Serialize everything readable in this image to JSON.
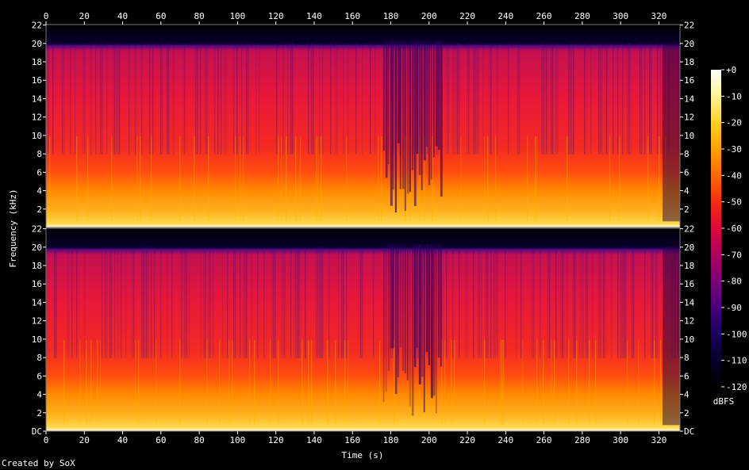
{
  "footer": {
    "created_by": "Created by SoX"
  },
  "chart_data": {
    "type": "heatmap",
    "title": "",
    "xlabel": "Time (s)",
    "ylabel": "Frequency (kHz)",
    "xlim": [
      0,
      331
    ],
    "x_ticks": [
      "0",
      "20",
      "40",
      "60",
      "80",
      "100",
      "120",
      "140",
      "160",
      "180",
      "200",
      "220",
      "240",
      "260",
      "280",
      "300",
      "320"
    ],
    "channels": [
      {
        "y_ticks": [
          "22",
          "20",
          "18",
          "16",
          "14",
          "12",
          "10",
          "8",
          "6",
          "4",
          "2"
        ],
        "ylim": [
          0,
          22.05
        ]
      },
      {
        "y_ticks": [
          "22",
          "20",
          "18",
          "16",
          "14",
          "12",
          "10",
          "8",
          "6",
          "4",
          "2",
          "DC"
        ],
        "ylim": [
          0,
          22.05
        ]
      }
    ],
    "cutoff_khz": 20,
    "quiet_segments_s": [
      [
        176,
        207
      ]
    ],
    "colorbar": {
      "label": "dBFS",
      "range": [
        -120,
        0
      ],
      "ticks": [
        "+0",
        "-10",
        "-20",
        "-30",
        "-40",
        "-50",
        "-60",
        "-70",
        "-80",
        "-90",
        "-100",
        "-110",
        "-120"
      ],
      "colors": [
        "#ffffff",
        "#fff59a",
        "#ffd020",
        "#ffa000",
        "#ff6a00",
        "#f52a12",
        "#e0083a",
        "#b00060",
        "#7a0078",
        "#48007a",
        "#1c0060",
        "#050028",
        "#000000"
      ]
    }
  }
}
